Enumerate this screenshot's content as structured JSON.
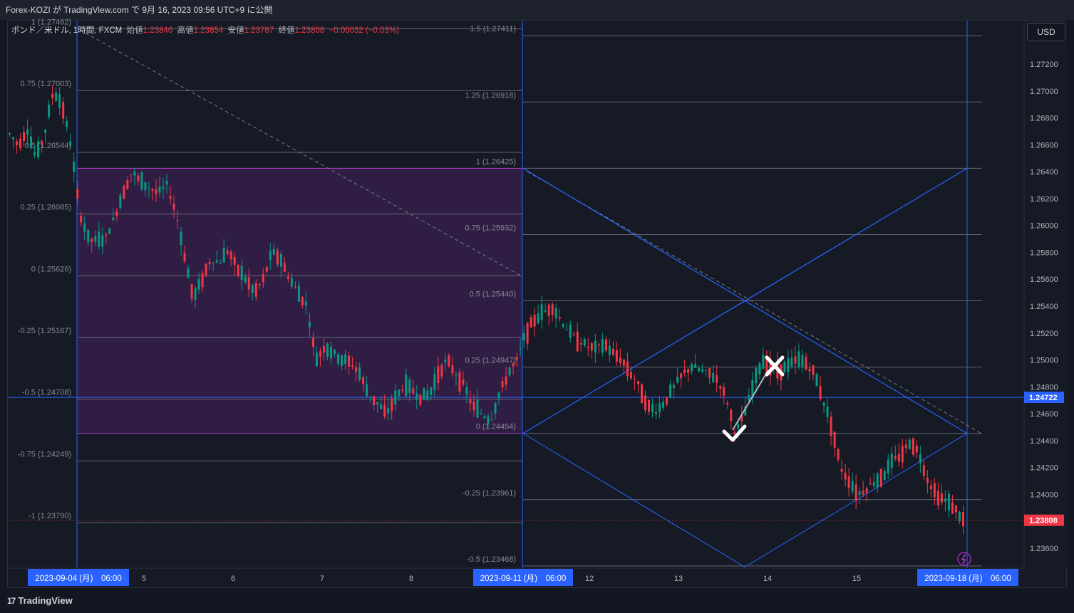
{
  "header": {
    "publish_line": "Forex-KOZI が TradingView.com で 9月 16, 2023 09:56 UTC+9 に公開"
  },
  "legend": {
    "symbol": "ポンド／米ドル, 1時間, FXCM",
    "open_label": "始値",
    "open": "1.23840",
    "high_label": "高値",
    "high": "1.23854",
    "low_label": "安値",
    "low": "1.23787",
    "close_label": "終値",
    "close": "1.23808",
    "change": "−0.00032 (−0.03%)"
  },
  "currency_button": "USD",
  "footer": {
    "logo_text": "TradingView",
    "logo_mark": "17"
  },
  "colors": {
    "background": "#161a25",
    "up": "#089981",
    "down": "#f23645",
    "fib_line": "#787b86",
    "blue": "#2962ff",
    "rect_fill": "#3a1f4f",
    "rect_border": "#b33dc6"
  },
  "chart_data": {
    "type": "candlestick",
    "symbol": "GBPUSD",
    "timeframe": "1H",
    "y_axis": {
      "min": 1.233,
      "max": 1.275,
      "ticks": [
        "1.27200",
        "1.27000",
        "1.26800",
        "1.26600",
        "1.26400",
        "1.26200",
        "1.26000",
        "1.25800",
        "1.25600",
        "1.25400",
        "1.25200",
        "1.25000",
        "1.24800",
        "1.24600",
        "1.24400",
        "1.24200",
        "1.24000",
        "1.23600"
      ],
      "price_tag_line": "1.24722",
      "price_tag_last": "1.23808"
    },
    "x_axis": {
      "labels": [
        "5",
        "6",
        "7",
        "8",
        "12",
        "13",
        "14",
        "15"
      ],
      "highlighted": [
        "2023-09-04 (月)　06:00",
        "2023-09-11 (月)　06:00",
        "2023-09-18 (月)　06:00"
      ]
    },
    "fib_left": {
      "levels": [
        {
          "label": "1 (1.27462)",
          "price": 1.27462
        },
        {
          "label": "0.75 (1.27003)",
          "price": 1.27003
        },
        {
          "label": "0.5 (1.26544)",
          "price": 1.26544
        },
        {
          "label": "0.25 (1.26085)",
          "price": 1.26085
        },
        {
          "label": "0 (1.25626)",
          "price": 1.25626
        },
        {
          "label": "-0.25 (1.25167)",
          "price": 1.25167
        },
        {
          "label": "-0.5 (1.24708)",
          "price": 1.24708
        },
        {
          "label": "-0.75 (1.24249)",
          "price": 1.24249
        },
        {
          "label": "-1 (1.23790)",
          "price": 1.2379
        }
      ]
    },
    "fib_right": {
      "levels": [
        {
          "label": "1.5 (1.27411)",
          "price": 1.27411
        },
        {
          "label": "1.25 (1.26918)",
          "price": 1.26918
        },
        {
          "label": "1 (1.26425)",
          "price": 1.26425
        },
        {
          "label": "0.75 (1.25932)",
          "price": 1.25932
        },
        {
          "label": "0.5 (1.25440)",
          "price": 1.2544
        },
        {
          "label": "0.25 (1.24947)",
          "price": 1.24947
        },
        {
          "label": "0 (1.24454)",
          "price": 1.24454
        },
        {
          "label": "-0.25 (1.23961)",
          "price": 1.23961
        },
        {
          "label": "-0.5 (1.23468)",
          "price": 1.23468
        }
      ]
    },
    "range_box": {
      "top": 1.26425,
      "bottom": 1.24454
    },
    "horizontal_line": 1.24722,
    "last_price": 1.23808,
    "path_points": [
      [
        1.2588,
        1.2591
      ],
      [
        1.2606,
        1.2625
      ],
      [
        1.264,
        1.2632
      ],
      [
        1.2628,
        1.2624
      ],
      [
        1.263,
        1.261
      ],
      [
        1.2578,
        1.2545
      ],
      [
        1.256,
        1.2575
      ],
      [
        1.2572,
        1.2582
      ],
      [
        1.2568,
        1.256
      ],
      [
        1.255,
        1.256
      ],
      [
        1.258,
        1.2575
      ],
      [
        1.256,
        1.255
      ],
      [
        1.254,
        1.25
      ],
      [
        1.251,
        1.2505
      ],
      [
        1.25,
        1.2498
      ],
      [
        1.249,
        1.2475
      ],
      [
        1.2468,
        1.246
      ],
      [
        1.247,
        1.248
      ],
      [
        1.2478,
        1.2472
      ],
      [
        1.2474,
        1.249
      ],
      [
        1.25,
        1.249
      ],
      [
        1.248,
        1.2465
      ],
      [
        1.246,
        1.2455
      ],
      [
        1.2475,
        1.249
      ],
      [
        1.25,
        1.252
      ],
      [
        1.253,
        1.2535
      ],
      [
        1.254,
        1.253
      ],
      [
        1.252,
        1.2515
      ],
      [
        1.251,
        1.2508
      ],
      [
        1.2512,
        1.2505
      ],
      [
        1.25,
        1.249
      ],
      [
        1.248,
        1.2465
      ],
      [
        1.2462,
        1.247
      ],
      [
        1.248,
        1.249
      ],
      [
        1.2495,
        1.2492
      ],
      [
        1.249,
        1.2485
      ],
      [
        1.247,
        1.2445
      ],
      [
        1.246,
        1.248
      ],
      [
        1.25,
        1.2495
      ],
      [
        1.2492,
        1.2495
      ],
      [
        1.25,
        1.2498
      ],
      [
        1.249,
        1.247
      ],
      [
        1.245,
        1.242
      ],
      [
        1.241,
        1.24
      ],
      [
        1.2405,
        1.241
      ],
      [
        1.2415,
        1.2425
      ],
      [
        1.243,
        1.244
      ],
      [
        1.243,
        1.241
      ],
      [
        1.24,
        1.2395
      ],
      [
        1.239,
        1.2381
      ]
    ]
  }
}
